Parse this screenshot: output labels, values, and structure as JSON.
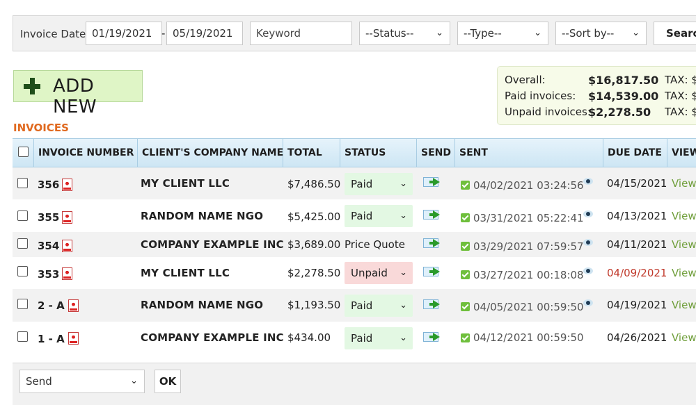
{
  "filters": {
    "invoice_date_label": "Invoice Date:",
    "date_from": "01/19/2021",
    "date_to": "05/19/2021",
    "dash": "-",
    "keyword_placeholder": "Keyword",
    "status": "--Status--",
    "type": "--Type--",
    "sort": "--Sort by--",
    "search_label": "Search"
  },
  "add_new_label": "ADD NEW",
  "summary": {
    "rows": [
      {
        "label": "Overall:",
        "value": "$16,817.50",
        "tax": "TAX: $"
      },
      {
        "label": "Paid invoices:",
        "value": "$14,539.00",
        "tax": "TAX: $"
      },
      {
        "label": "Unpaid invoices:",
        "value": "$2,278.50",
        "tax": "TAX: $"
      }
    ]
  },
  "section_title": "INVOICES",
  "table": {
    "headers": [
      "INVOICE NUMBER",
      "CLIENT'S COMPANY NAME",
      "TOTAL",
      "STATUS",
      "SEND",
      "SENT",
      "DUE DATE",
      "VIEW"
    ],
    "rows": [
      {
        "number": "356",
        "client": "MY CLIENT LLC",
        "total": "$7,486.50",
        "status": "Paid",
        "sent": "04/02/2021 03:24:56",
        "due": "04/15/2021",
        "view": "View"
      },
      {
        "number": "355",
        "client": "RANDOM NAME NGO",
        "total": "$5,425.00",
        "status": "Paid",
        "sent": "03/31/2021 05:22:41",
        "due": "04/13/2021",
        "view": "View"
      },
      {
        "number": "354",
        "client": "COMPANY EXAMPLE INC",
        "total": "$3,689.00",
        "status": "Price Quote",
        "sent": "03/29/2021 07:59:57",
        "due": "04/11/2021",
        "view": "View"
      },
      {
        "number": "353",
        "client": "MY CLIENT LLC",
        "total": "$2,278.50",
        "status": "Unpaid",
        "sent": "03/27/2021 00:18:08",
        "due": "04/09/2021",
        "view": "View"
      },
      {
        "number": "2 - A",
        "client": "RANDOM NAME NGO",
        "total": "$1,193.50",
        "status": "Paid",
        "sent": "04/05/2021 00:59:50",
        "due": "04/19/2021",
        "view": "View"
      },
      {
        "number": "1 - A",
        "client": "COMPANY EXAMPLE INC",
        "total": "$434.00",
        "status": "Paid",
        "sent": "04/12/2021 00:59:50",
        "due": "04/26/2021",
        "view": "View"
      }
    ]
  },
  "bottom": {
    "action": "Send",
    "ok_label": "OK"
  },
  "colors": {
    "accent_orange": "#e0691f",
    "paid_bg": "#e3f8e3",
    "unpaid_bg": "#f9d9d9",
    "overdue_text": "#c0392b",
    "view_link": "#6f9e3a"
  }
}
